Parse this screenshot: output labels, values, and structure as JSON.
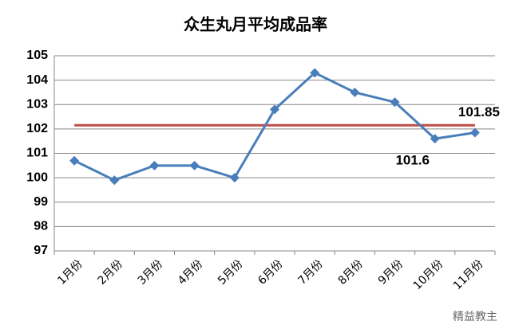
{
  "chart_data": {
    "type": "line",
    "title": "众生丸月平均成品率",
    "categories": [
      "1月份",
      "2月份",
      "3月份",
      "4月份",
      "5月份",
      "6月份",
      "7月份",
      "8月份",
      "9月份",
      "10月份",
      "11月份"
    ],
    "series": [
      {
        "color": "#4a7ebb",
        "values": [
          100.7,
          99.9,
          100.5,
          100.5,
          100.0,
          102.8,
          104.3,
          103.5,
          103.1,
          101.6,
          101.85
        ],
        "value_labels": [
          null,
          null,
          null,
          null,
          null,
          null,
          null,
          null,
          null,
          "101.6",
          "101.85"
        ]
      }
    ],
    "reference_line": {
      "value": 102.15,
      "color": "#be4b48"
    },
    "ylim": [
      97,
      105
    ],
    "yticks": [
      97,
      98,
      99,
      100,
      101,
      102,
      103,
      104,
      105
    ],
    "grid": true,
    "watermark": "精益教主"
  }
}
